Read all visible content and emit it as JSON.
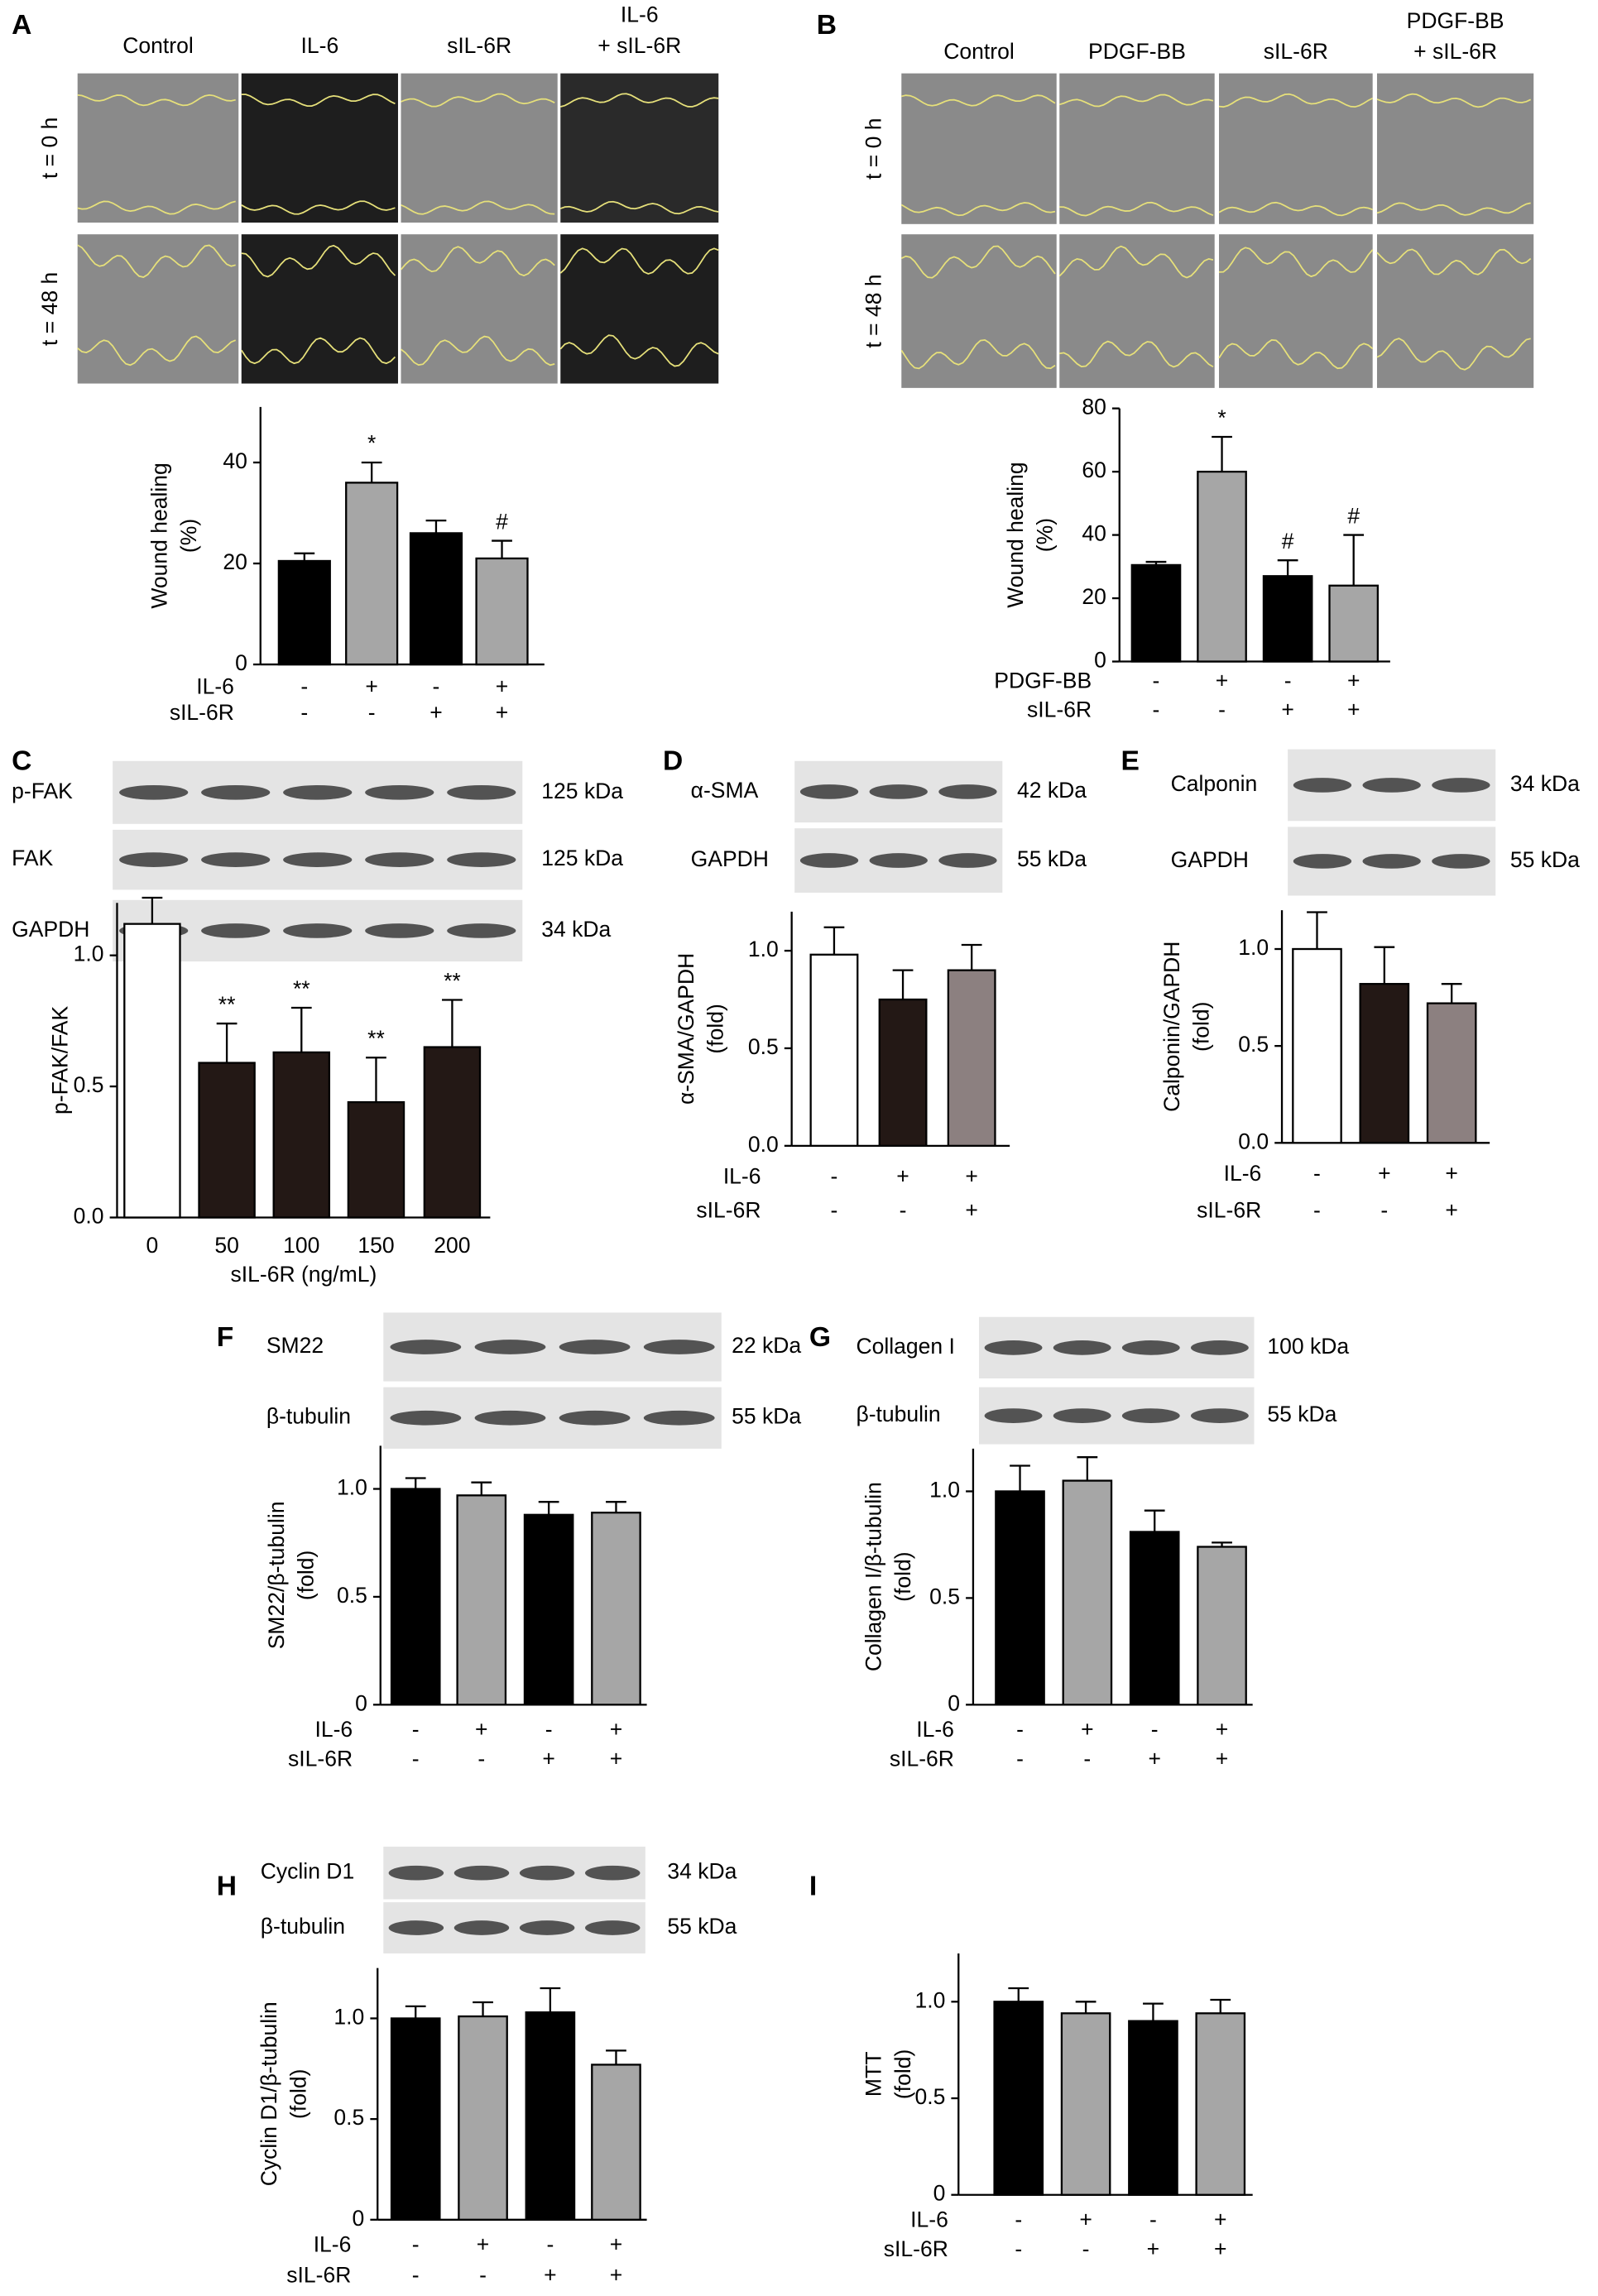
{
  "chart_data": [
    {
      "panel": "A",
      "type": "bar",
      "image_columns": [
        [
          "Control"
        ],
        [
          "IL-6"
        ],
        [
          "sIL-6R"
        ],
        [
          "IL-6",
          "+ sIL-6R"
        ]
      ],
      "image_rows": [
        "t = 0 h",
        "t = 48 h"
      ],
      "y_label": [
        "Wound healing",
        "(%)"
      ],
      "ylim": [
        0,
        51
      ],
      "yticks": [
        0,
        20,
        40
      ],
      "values": [
        20.5,
        36,
        26,
        21
      ],
      "errors": [
        1.5,
        4,
        2.5,
        3.5
      ],
      "colors": [
        "#000000",
        "#a6a6a6",
        "#000000",
        "#a6a6a6"
      ],
      "annotations": [
        null,
        "*",
        null,
        "#"
      ],
      "conditions": [
        {
          "name": "IL-6",
          "signs": [
            "-",
            "+",
            "-",
            "+"
          ]
        },
        {
          "name": "sIL-6R",
          "signs": [
            "-",
            "-",
            "+",
            "+"
          ]
        }
      ]
    },
    {
      "panel": "B",
      "type": "bar",
      "image_columns": [
        [
          "Control"
        ],
        [
          "PDGF-BB"
        ],
        [
          "sIL-6R"
        ],
        [
          "PDGF-BB",
          "+ sIL-6R"
        ]
      ],
      "image_rows": [
        "t = 0 h",
        "t = 48 h"
      ],
      "y_label": [
        "Wound healing",
        "(%)"
      ],
      "ylim": [
        0,
        80
      ],
      "yticks": [
        0,
        20,
        40,
        60,
        80
      ],
      "values": [
        30.5,
        60,
        27,
        24
      ],
      "errors": [
        1,
        11,
        5,
        16
      ],
      "colors": [
        "#000000",
        "#a6a6a6",
        "#000000",
        "#a6a6a6"
      ],
      "annotations": [
        null,
        "*",
        "#",
        "#"
      ],
      "conditions": [
        {
          "name": "PDGF-BB",
          "signs": [
            "-",
            "+",
            "-",
            "+"
          ]
        },
        {
          "name": "sIL-6R",
          "signs": [
            "-",
            "-",
            "+",
            "+"
          ]
        }
      ]
    },
    {
      "panel": "C",
      "type": "bar",
      "blots": [
        {
          "label": "p-FAK",
          "size": "125 kDa"
        },
        {
          "label": "FAK",
          "size": "125 kDa"
        },
        {
          "label": "GAPDH",
          "size": "34 kDa"
        }
      ],
      "y_label": [
        "p-FAK/FAK"
      ],
      "ylim": [
        0,
        1.2
      ],
      "yticks": [
        {
          "value": 0,
          "label": "0.0"
        },
        0.5,
        {
          "value": 1,
          "label": "1.0"
        }
      ],
      "categories": [
        "0",
        "50",
        "100",
        "150",
        "200"
      ],
      "x_label": "sIL-6R (ng/mL)",
      "values": [
        1.12,
        0.59,
        0.63,
        0.44,
        0.65
      ],
      "errors": [
        0.1,
        0.15,
        0.17,
        0.17,
        0.18
      ],
      "colors": [
        "#ffffff",
        "#231815",
        "#231815",
        "#231815",
        "#231815"
      ],
      "annotations": [
        null,
        "**",
        "**",
        "**",
        "**"
      ]
    },
    {
      "panel": "D",
      "type": "bar",
      "blots": [
        {
          "label": "α-SMA",
          "size": "42 kDa"
        },
        {
          "label": "GAPDH",
          "size": "55 kDa"
        }
      ],
      "y_label": [
        "α-SMA/GAPDH",
        "(fold)"
      ],
      "ylim": [
        0,
        1.2
      ],
      "yticks": [
        {
          "value": 0,
          "label": "0.0"
        },
        0.5,
        {
          "value": 1,
          "label": "1.0"
        }
      ],
      "values": [
        0.98,
        0.75,
        0.9
      ],
      "errors": [
        0.14,
        0.15,
        0.13
      ],
      "colors": [
        "#ffffff",
        "#231815",
        "#8c8080"
      ],
      "conditions": [
        {
          "name": "IL-6",
          "signs": [
            "-",
            "+",
            "+"
          ]
        },
        {
          "name": "sIL-6R",
          "signs": [
            "-",
            "-",
            "+"
          ]
        }
      ]
    },
    {
      "panel": "E",
      "type": "bar",
      "blots": [
        {
          "label": "Calponin",
          "size": "34 kDa"
        },
        {
          "label": "GAPDH",
          "size": "55 kDa"
        }
      ],
      "y_label": [
        "Calponin/GAPDH",
        "(fold)"
      ],
      "ylim": [
        0,
        1.2
      ],
      "yticks": [
        {
          "value": 0,
          "label": "0.0"
        },
        0.5,
        {
          "value": 1,
          "label": "1.0"
        }
      ],
      "values": [
        1.0,
        0.82,
        0.72
      ],
      "errors": [
        0.19,
        0.19,
        0.1
      ],
      "colors": [
        "#ffffff",
        "#231815",
        "#8c8080"
      ],
      "conditions": [
        {
          "name": "IL-6",
          "signs": [
            "-",
            "+",
            "+"
          ]
        },
        {
          "name": "sIL-6R",
          "signs": [
            "-",
            "-",
            "+"
          ]
        }
      ]
    },
    {
      "panel": "F",
      "type": "bar",
      "blots": [
        {
          "label": "SM22",
          "size": "22 kDa"
        },
        {
          "label": "β-tubulin",
          "size": "55 kDa"
        }
      ],
      "y_label": [
        "SM22/β-tubulin",
        "(fold)"
      ],
      "ylim": [
        0,
        1.2
      ],
      "yticks": [
        0,
        0.5,
        {
          "value": 1,
          "label": "1.0"
        }
      ],
      "values": [
        1.0,
        0.97,
        0.88,
        0.89
      ],
      "errors": [
        0.05,
        0.06,
        0.06,
        0.05
      ],
      "colors": [
        "#000000",
        "#a6a6a6",
        "#000000",
        "#a6a6a6"
      ],
      "conditions": [
        {
          "name": "IL-6",
          "signs": [
            "-",
            "+",
            "-",
            "+"
          ]
        },
        {
          "name": "sIL-6R",
          "signs": [
            "-",
            "-",
            "+",
            "+"
          ]
        }
      ]
    },
    {
      "panel": "G",
      "type": "bar",
      "blots": [
        {
          "label": "Collagen I",
          "size": "100 kDa"
        },
        {
          "label": "β-tubulin",
          "size": "55 kDa"
        }
      ],
      "y_label": [
        "Collagen I/β-tubulin",
        "(fold)"
      ],
      "ylim": [
        0,
        1.2
      ],
      "yticks": [
        0,
        0.5,
        {
          "value": 1,
          "label": "1.0"
        }
      ],
      "values": [
        1.0,
        1.05,
        0.81,
        0.74
      ],
      "errors": [
        0.12,
        0.11,
        0.1,
        0.02
      ],
      "colors": [
        "#000000",
        "#a6a6a6",
        "#000000",
        "#a6a6a6"
      ],
      "conditions": [
        {
          "name": "IL-6",
          "signs": [
            "-",
            "+",
            "-",
            "+"
          ]
        },
        {
          "name": "sIL-6R",
          "signs": [
            "-",
            "-",
            "+",
            "+"
          ]
        }
      ]
    },
    {
      "panel": "H",
      "type": "bar",
      "blots": [
        {
          "label": "Cyclin D1",
          "size": "34 kDa"
        },
        {
          "label": "β-tubulin",
          "size": "55 kDa"
        }
      ],
      "y_label": [
        "Cyclin D1/β-tubulin",
        "(fold)"
      ],
      "ylim": [
        0,
        1.25
      ],
      "yticks": [
        0,
        0.5,
        {
          "value": 1,
          "label": "1.0"
        }
      ],
      "values": [
        1.0,
        1.01,
        1.03,
        0.77
      ],
      "errors": [
        0.06,
        0.07,
        0.12,
        0.07
      ],
      "colors": [
        "#000000",
        "#a6a6a6",
        "#000000",
        "#a6a6a6"
      ],
      "conditions": [
        {
          "name": "IL-6",
          "signs": [
            "-",
            "+",
            "-",
            "+"
          ]
        },
        {
          "name": "sIL-6R",
          "signs": [
            "-",
            "-",
            "+",
            "+"
          ]
        }
      ]
    },
    {
      "panel": "I",
      "type": "bar",
      "y_label": [
        "MTT",
        "(fold)"
      ],
      "ylim": [
        0,
        1.25
      ],
      "yticks": [
        0,
        0.5,
        {
          "value": 1,
          "label": "1.0"
        }
      ],
      "values": [
        1.0,
        0.94,
        0.9,
        0.94
      ],
      "errors": [
        0.07,
        0.06,
        0.09,
        0.07
      ],
      "colors": [
        "#000000",
        "#a6a6a6",
        "#000000",
        "#a6a6a6"
      ],
      "conditions": [
        {
          "name": "IL-6",
          "signs": [
            "-",
            "+",
            "-",
            "+"
          ]
        },
        {
          "name": "sIL-6R",
          "signs": [
            "-",
            "-",
            "+",
            "+"
          ]
        }
      ]
    }
  ]
}
